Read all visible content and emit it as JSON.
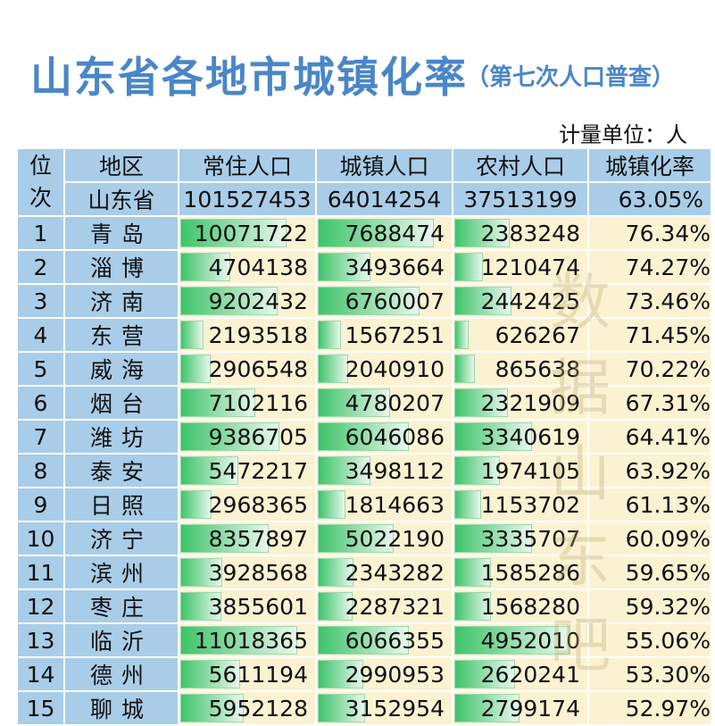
{
  "header": {
    "title": "山东省各地市城镇化率",
    "subtitle": "（第七次人口普查）",
    "unit": "计量单位：人"
  },
  "watermark": [
    "数",
    "据",
    "山",
    "东",
    "吧"
  ],
  "chart_data": {
    "type": "table",
    "columns": [
      "位次",
      "地区",
      "常住人口",
      "城镇人口",
      "农村人口",
      "城镇化率"
    ],
    "column_header_lines": {
      "rank": [
        "位",
        "次"
      ]
    },
    "province": {
      "region": "山东省",
      "resident": "101527453",
      "urban": "64014254",
      "rural": "37513199",
      "rate": "63.05%"
    },
    "rows": [
      {
        "rank": "1",
        "region": "青岛",
        "resident": 10071722,
        "urban": 7688474,
        "rural": 2383248,
        "rate": "76.34%"
      },
      {
        "rank": "2",
        "region": "淄博",
        "resident": 4704138,
        "urban": 3493664,
        "rural": 1210474,
        "rate": "74.27%"
      },
      {
        "rank": "3",
        "region": "济南",
        "resident": 9202432,
        "urban": 6760007,
        "rural": 2442425,
        "rate": "73.46%"
      },
      {
        "rank": "4",
        "region": "东营",
        "resident": 2193518,
        "urban": 1567251,
        "rural": 626267,
        "rate": "71.45%"
      },
      {
        "rank": "5",
        "region": "威海",
        "resident": 2906548,
        "urban": 2040910,
        "rural": 865638,
        "rate": "70.22%"
      },
      {
        "rank": "6",
        "region": "烟台",
        "resident": 7102116,
        "urban": 4780207,
        "rural": 2321909,
        "rate": "67.31%"
      },
      {
        "rank": "7",
        "region": "潍坊",
        "resident": 9386705,
        "urban": 6046086,
        "rural": 3340619,
        "rate": "64.41%"
      },
      {
        "rank": "8",
        "region": "泰安",
        "resident": 5472217,
        "urban": 3498112,
        "rural": 1974105,
        "rate": "63.92%"
      },
      {
        "rank": "9",
        "region": "日照",
        "resident": 2968365,
        "urban": 1814663,
        "rural": 1153702,
        "rate": "61.13%"
      },
      {
        "rank": "10",
        "region": "济宁",
        "resident": 8357897,
        "urban": 5022190,
        "rural": 3335707,
        "rate": "60.09%"
      },
      {
        "rank": "11",
        "region": "滨州",
        "resident": 3928568,
        "urban": 2343282,
        "rural": 1585286,
        "rate": "59.65%"
      },
      {
        "rank": "12",
        "region": "枣庄",
        "resident": 3855601,
        "urban": 2287321,
        "rural": 1568280,
        "rate": "59.32%"
      },
      {
        "rank": "13",
        "region": "临沂",
        "resident": 11018365,
        "urban": 6066355,
        "rural": 4952010,
        "rate": "55.06%"
      },
      {
        "rank": "14",
        "region": "德州",
        "resident": 5611194,
        "urban": 2990953,
        "rural": 2620241,
        "rate": "53.30%"
      },
      {
        "rank": "15",
        "region": "聊城",
        "resident": 5952128,
        "urban": 3152954,
        "rural": 2799174,
        "rate": "52.97%"
      }
    ],
    "colors": {
      "title": "#4a86c8",
      "header_bg": "#a9cde8",
      "cell_bg": "#fbf2d2",
      "bar": "#3ec46a"
    }
  }
}
